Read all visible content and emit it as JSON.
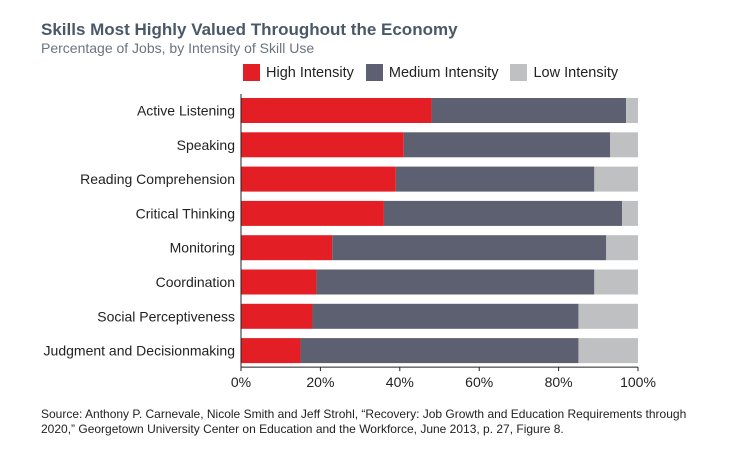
{
  "title": "Skills Most Highly Valued Throughout the Economy",
  "subtitle": "Percentage of Jobs, by Intensity of Skill Use",
  "source": "Source: Anthony P. Carnevale, Nicole Smith and Jeff Strohl, “Recovery: Job Growth and Education Requirements through 2020,” Georgetown University Center on Education and the Workforce, June 2013, p. 27, Figure 8.",
  "colors": {
    "high": "#e31e24",
    "medium": "#5c6070",
    "low": "#bfc0c2"
  },
  "chart_data": {
    "type": "bar",
    "orientation": "horizontal",
    "stacked": true,
    "title": "Skills Most Highly Valued Throughout the Economy",
    "subtitle": "Percentage of Jobs, by Intensity of Skill Use",
    "xlabel": "",
    "ylabel": "",
    "xlim": [
      0,
      100
    ],
    "xticks": [
      "0%",
      "20%",
      "40%",
      "60%",
      "80%",
      "100%"
    ],
    "categories": [
      "Active Listening",
      "Speaking",
      "Reading Comprehension",
      "Critical Thinking",
      "Monitoring",
      "Coordination",
      "Social Perceptiveness",
      "Judgment and Decisionmaking"
    ],
    "series": [
      {
        "name": "High Intensity",
        "key": "high",
        "values": [
          48,
          41,
          39,
          36,
          23,
          19,
          18,
          15
        ]
      },
      {
        "name": "Medium Intensity",
        "key": "medium",
        "values": [
          49,
          52,
          50,
          60,
          69,
          70,
          67,
          70
        ]
      },
      {
        "name": "Low Intensity",
        "key": "low",
        "values": [
          3,
          7,
          11,
          4,
          8,
          11,
          15,
          15
        ]
      }
    ],
    "legend": "top"
  }
}
